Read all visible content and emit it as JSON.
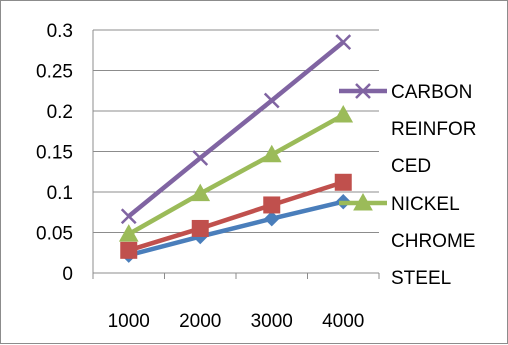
{
  "chart_data": {
    "type": "line",
    "categories": [
      "1000",
      "2000",
      "3000",
      "4000"
    ],
    "ylim": [
      0,
      0.3
    ],
    "y_ticks": [
      "0",
      "0.05",
      "0.1",
      "0.15",
      "0.2",
      "0.25",
      "0.3"
    ],
    "grid": "horizontal",
    "legend_position": "right",
    "series": [
      {
        "values": [
          0.022,
          0.045,
          0.067,
          0.088
        ],
        "color": "#4a7ebb",
        "marker": "diamond"
      },
      {
        "values": [
          0.028,
          0.055,
          0.084,
          0.112
        ],
        "color": "#c0504d",
        "marker": "square"
      },
      {
        "name": "NICKEL CHROME STEEL",
        "values": [
          0.048,
          0.098,
          0.146,
          0.195
        ],
        "color": "#9bbb59",
        "marker": "triangle"
      },
      {
        "name": "CARBON REINFORCED",
        "values": [
          0.07,
          0.142,
          0.213,
          0.285
        ],
        "color": "#8064a2",
        "marker": "x"
      }
    ],
    "legend": [
      {
        "series_index": 3,
        "lines": [
          "CARBON",
          "REINFOR",
          "CED"
        ]
      },
      {
        "series_index": 2,
        "lines": [
          "NICKEL",
          "CHROME",
          "STEEL"
        ]
      }
    ]
  }
}
